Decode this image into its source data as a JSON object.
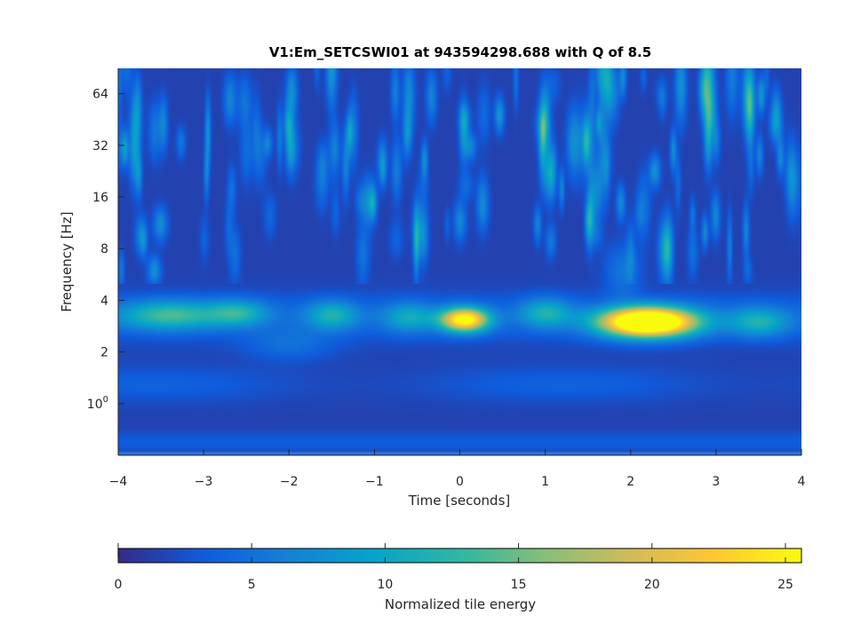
{
  "chart_data": {
    "type": "heatmap",
    "title": "V1:Em_SETCSWI01 at 943594298.688 with Q of 8.5",
    "xlabel": "Time [seconds]",
    "ylabel": "Frequency [Hz]",
    "xlim": [
      -4,
      4
    ],
    "ylim": [
      0.5,
      90
    ],
    "y_scale": "log2",
    "x_ticks": [
      -4,
      -3,
      -2,
      -1,
      0,
      1,
      2,
      3,
      4
    ],
    "x_tick_labels": [
      "−4",
      "−3",
      "−2",
      "−1",
      "0",
      "1",
      "2",
      "3",
      "4"
    ],
    "y_ticks": [
      1,
      2,
      4,
      8,
      16,
      32,
      64
    ],
    "y_tick_labels": [
      {
        "base": "10",
        "exp": "0"
      },
      {
        "text": "2"
      },
      {
        "text": "4"
      },
      {
        "text": "8"
      },
      {
        "text": "16"
      },
      {
        "text": "32"
      },
      {
        "text": "64"
      }
    ],
    "colorbar": {
      "label": "Normalized tile energy",
      "range": [
        0,
        25.6
      ],
      "ticks": [
        0,
        5,
        10,
        15,
        20,
        25
      ],
      "tick_labels": [
        "0",
        "5",
        "10",
        "15",
        "20",
        "25"
      ],
      "colormap": "parula",
      "stops": [
        "#352a87",
        "#0f5cdd",
        "#1481d6",
        "#06a4ca",
        "#2eb7a4",
        "#87bf77",
        "#d1bb59",
        "#fec832",
        "#f9fb0e"
      ]
    },
    "hotspots": [
      {
        "label": "main blob",
        "time": 2.2,
        "freq": 3.0,
        "energy": 25.6
      },
      {
        "label": "secondary blob",
        "time": 0.05,
        "freq": 3.1,
        "energy": 24
      },
      {
        "label": "left band",
        "time": -3.4,
        "freq": 3.3,
        "energy": 13
      },
      {
        "label": "band near -1.5",
        "time": -1.5,
        "freq": 3.3,
        "energy": 9
      },
      {
        "label": "band near 1",
        "time": 1.0,
        "freq": 3.4,
        "energy": 8
      },
      {
        "label": "band near 3.5",
        "time": 3.5,
        "freq": 3.0,
        "energy": 8
      }
    ]
  }
}
